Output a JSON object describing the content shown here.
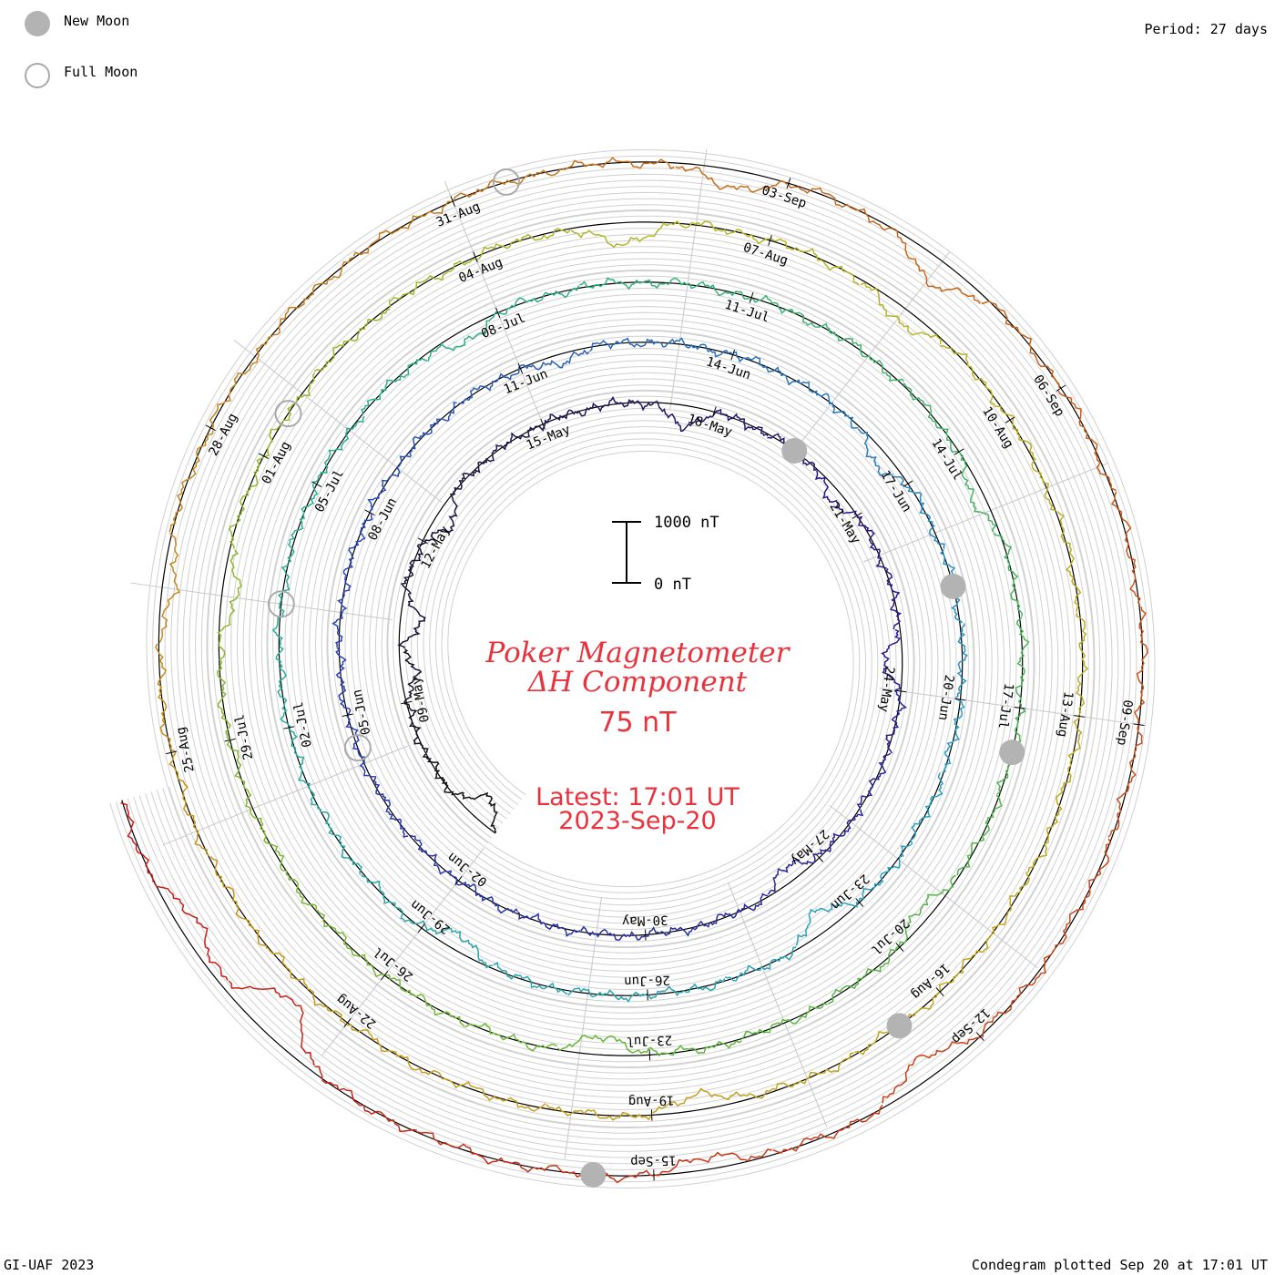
{
  "legend": {
    "new_moon_label": "New Moon",
    "full_moon_label": "Full Moon",
    "new_moon_color": "#b3b3b3",
    "full_moon_color": "#aaaaaa"
  },
  "period_label": "Period: 27 days",
  "title_line1": "Poker Magnetometer",
  "title_line2": "ΔH Component",
  "current_value": "75 nT",
  "latest_time": "Latest: 17:01 UT",
  "latest_date": "2023-Sep-20",
  "scale": {
    "top_label": "1000 nT",
    "bottom_label": "0 nT"
  },
  "credit_left": "GI-UAF 2023",
  "credit_right": "Condegram plotted Sep 20 at 17:01 UT",
  "chart_data": {
    "type": "line",
    "subtype": "condegram-spiral",
    "period_days": 27,
    "start_date": "2023-05-06",
    "end_date": "2023-09-20",
    "value_unit": "nT",
    "scale_bar_nT": 1000,
    "date_labels": [
      "09-May",
      "12-May",
      "15-May",
      "18-May",
      "21-May",
      "24-May",
      "27-May",
      "30-May",
      "02-Jun",
      "05-Jun",
      "08-Jun",
      "11-Jun",
      "14-Jun",
      "17-Jun",
      "20-Jun",
      "23-Jun",
      "26-Jun",
      "29-Jun",
      "02-Jul",
      "05-Jul",
      "08-Jul",
      "11-Jul",
      "14-Jul",
      "17-Jul",
      "20-Jul",
      "23-Jul",
      "26-Jul",
      "29-Jul",
      "01-Aug",
      "04-Aug",
      "07-Aug",
      "10-Aug",
      "13-Aug",
      "16-Aug",
      "19-Aug",
      "22-Aug",
      "25-Aug",
      "28-Aug",
      "31-Aug",
      "03-Sep",
      "06-Sep",
      "09-Sep",
      "12-Sep",
      "15-Sep"
    ],
    "new_moons": [
      "2023-05-19",
      "2023-06-18",
      "2023-07-17",
      "2023-08-16",
      "2023-09-15"
    ],
    "full_moons": [
      "2023-06-04",
      "2023-07-03",
      "2023-08-01",
      "2023-08-31"
    ],
    "color_ramp": [
      "#111111",
      "#2a1a8c",
      "#2a3fb5",
      "#2a9fc4",
      "#2ab08a",
      "#5cb83a",
      "#b6b628",
      "#c89c1a",
      "#c8601a",
      "#c81818"
    ],
    "disturbances_nT": [
      {
        "date": "2023-05-06",
        "value": -400
      },
      {
        "date": "2023-05-09",
        "value": -250
      },
      {
        "date": "2023-05-10",
        "value": -350
      },
      {
        "date": "2023-05-12",
        "value": -300
      },
      {
        "date": "2023-05-17",
        "value": -350
      },
      {
        "date": "2023-05-20",
        "value": -200
      },
      {
        "date": "2023-05-23",
        "value": -300
      },
      {
        "date": "2023-05-27",
        "value": -250
      },
      {
        "date": "2023-06-11",
        "value": -150
      },
      {
        "date": "2023-06-16",
        "value": -250
      },
      {
        "date": "2023-06-23",
        "value": -350
      },
      {
        "date": "2023-06-28",
        "value": -250
      },
      {
        "date": "2023-07-07",
        "value": -200
      },
      {
        "date": "2023-07-14",
        "value": -200
      },
      {
        "date": "2023-07-19",
        "value": -200
      },
      {
        "date": "2023-07-23",
        "value": -300
      },
      {
        "date": "2023-07-30",
        "value": -250
      },
      {
        "date": "2023-08-05",
        "value": -350
      },
      {
        "date": "2023-08-08",
        "value": -250
      },
      {
        "date": "2023-08-18",
        "value": -250
      },
      {
        "date": "2023-08-26",
        "value": -200
      },
      {
        "date": "2023-09-02",
        "value": -300
      },
      {
        "date": "2023-09-04",
        "value": -400
      },
      {
        "date": "2023-09-12",
        "value": -350
      },
      {
        "date": "2023-09-14",
        "value": -200
      },
      {
        "date": "2023-09-18",
        "value": -700
      },
      {
        "date": "2023-09-19",
        "value": -300
      }
    ]
  }
}
